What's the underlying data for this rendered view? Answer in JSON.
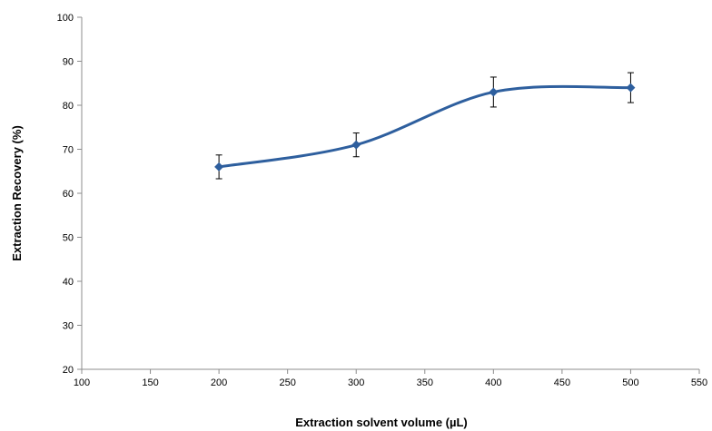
{
  "chart_data": {
    "type": "line",
    "title": "",
    "xlabel": "Extraction solvent volume (µL)",
    "ylabel": "Extraction Recovery (%)",
    "xlim": [
      100,
      550
    ],
    "ylim": [
      20,
      100
    ],
    "x_ticks": [
      100,
      150,
      200,
      250,
      300,
      350,
      400,
      450,
      500,
      550
    ],
    "y_ticks": [
      20,
      30,
      40,
      50,
      60,
      70,
      80,
      90,
      100
    ],
    "grid": false,
    "legend": "none",
    "series": [
      {
        "color": "#2E5F9E",
        "marker": "diamond",
        "smooth": true,
        "points": [
          {
            "x": 200,
            "y": 66,
            "err": 2.7
          },
          {
            "x": 300,
            "y": 71,
            "err": 2.7
          },
          {
            "x": 400,
            "y": 83,
            "err": 3.4
          },
          {
            "x": 500,
            "y": 84,
            "err": 3.4
          }
        ]
      }
    ]
  }
}
